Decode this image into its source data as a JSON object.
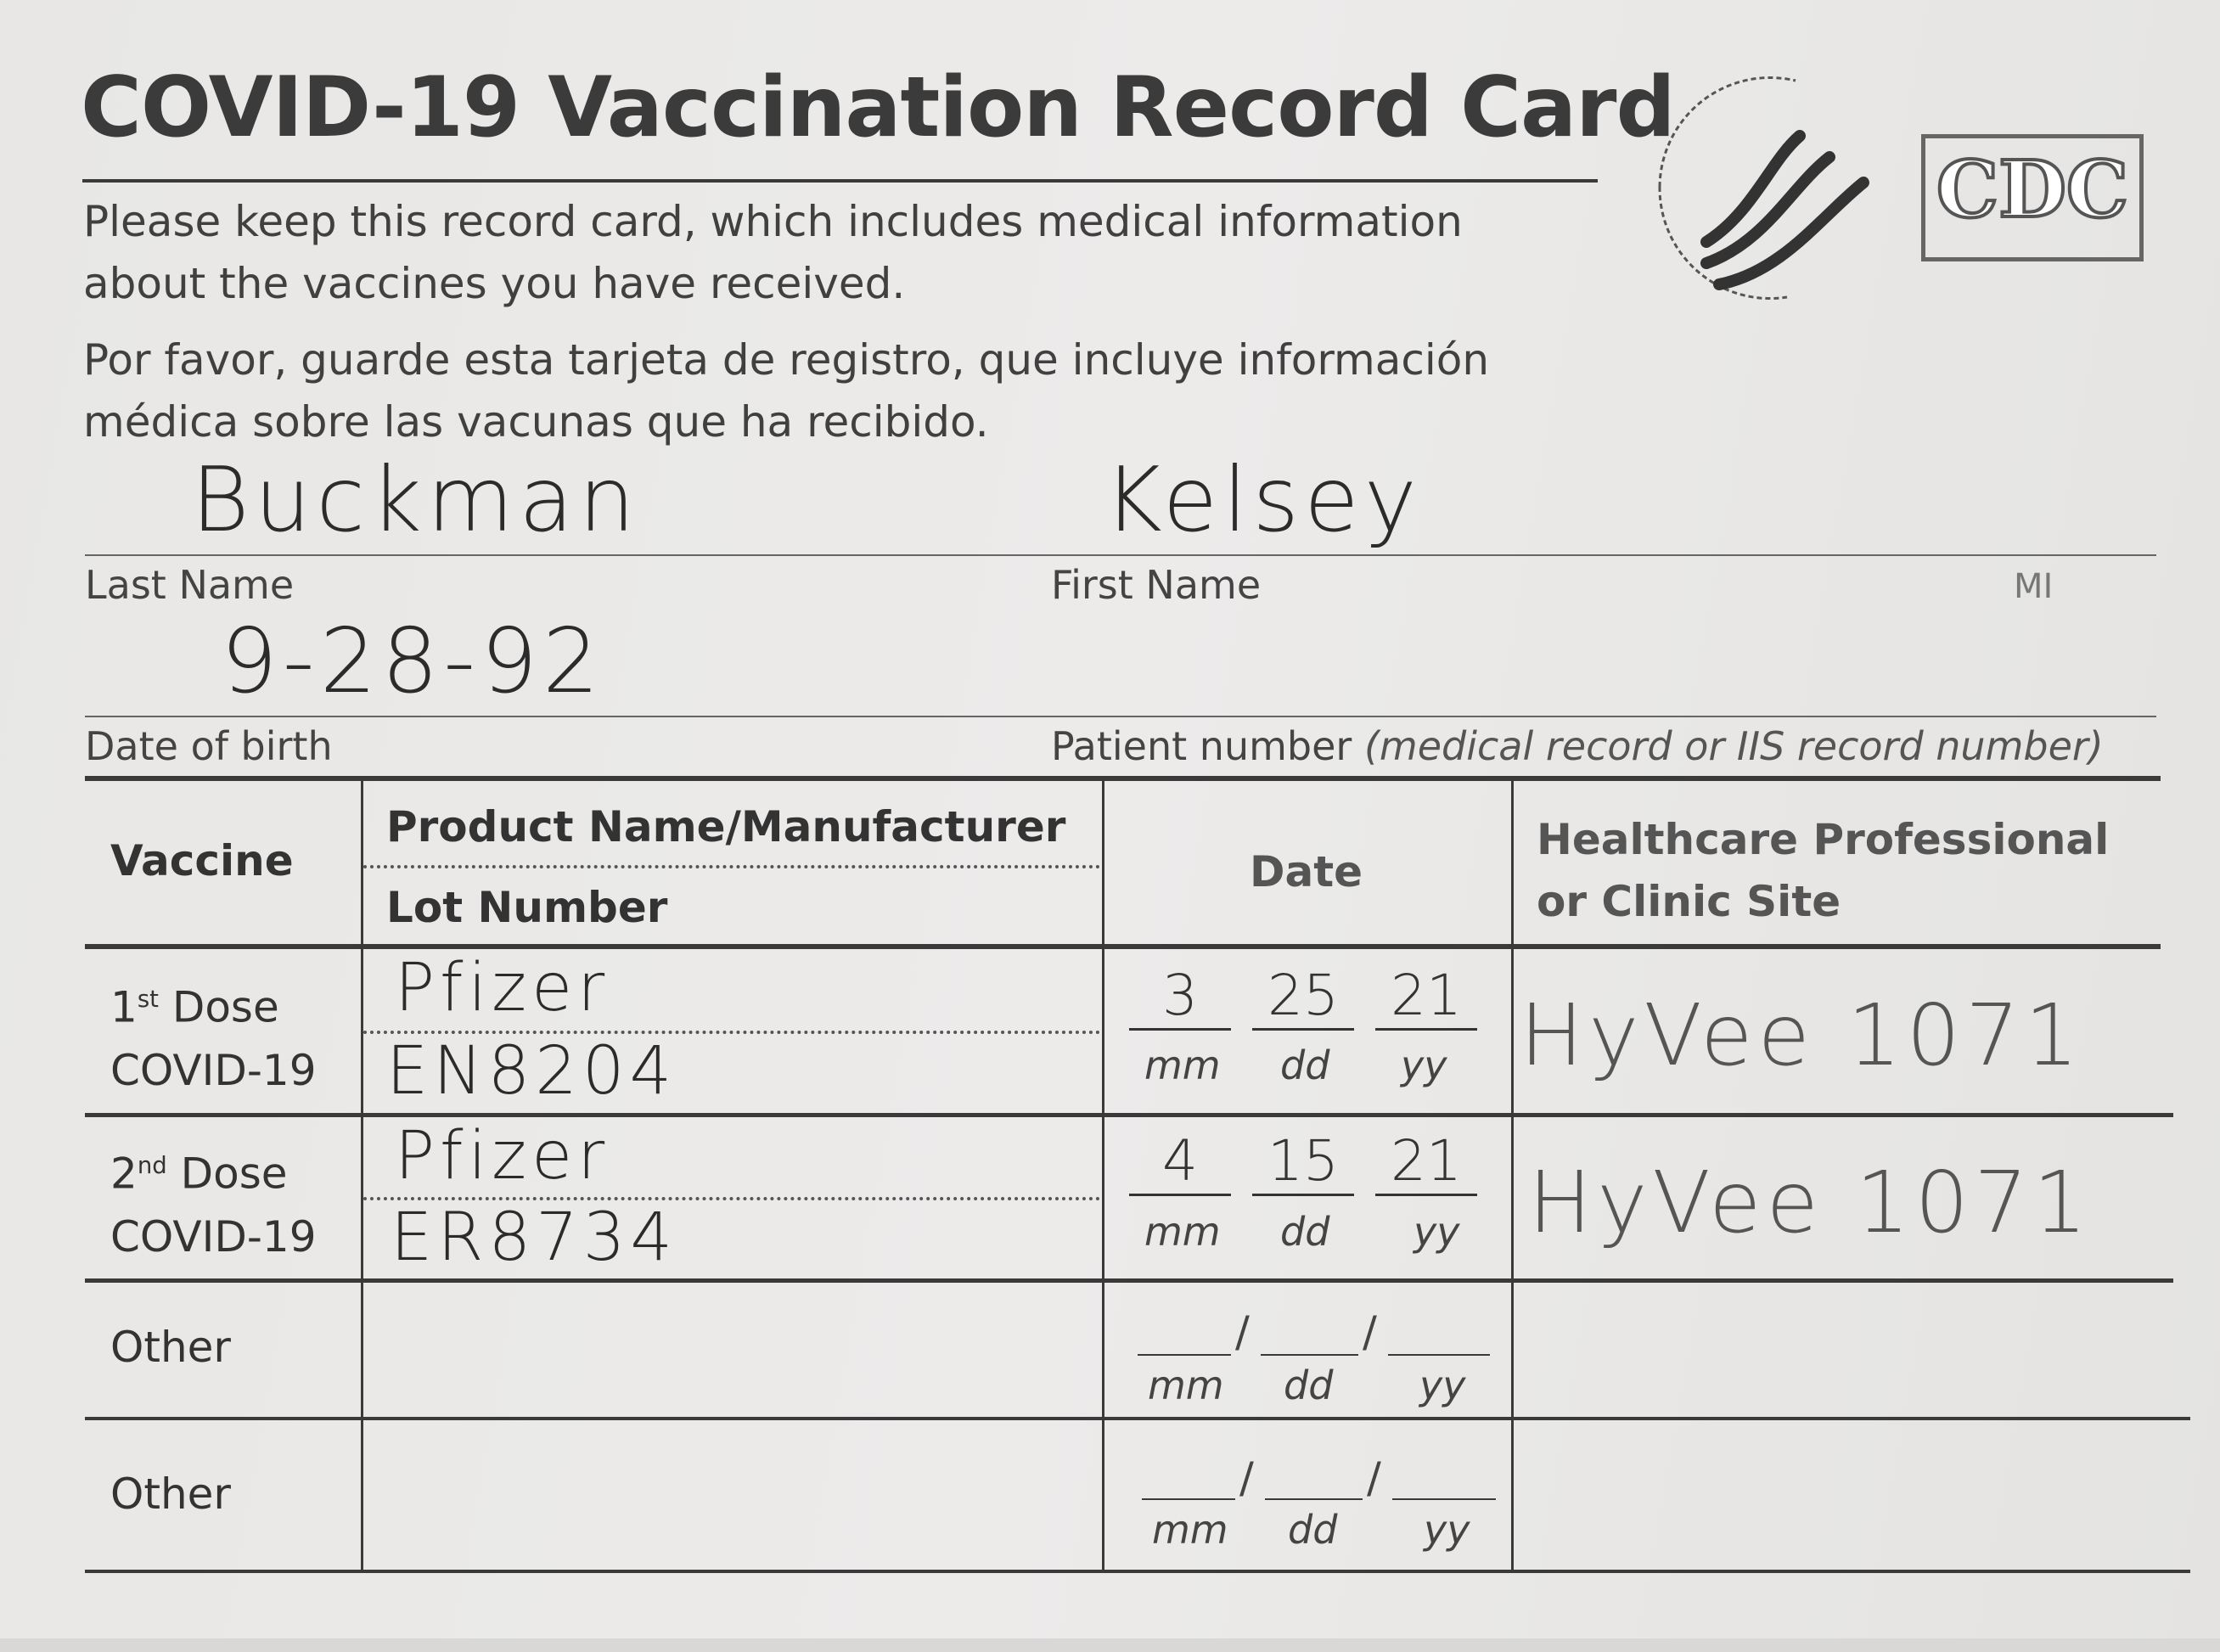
{
  "card": {
    "title": "COVID-19 Vaccination Record Card",
    "intro_en_1": "Please keep this record card, which includes medical information",
    "intro_en_2": "about the vaccines you have received.",
    "intro_es_1": "Por favor, guarde esta tarjeta de registro, que incluye información",
    "intro_es_2": "médica sobre las vacunas que ha recibido.",
    "logo_cdc": "CDC",
    "logo_hhs_icon": "hhs-eagle-seal-icon"
  },
  "patient": {
    "last_name_label": "Last Name",
    "first_name_label": "First Name",
    "mi_label": "MI",
    "dob_label": "Date of birth",
    "patient_number_label": "Patient number",
    "patient_number_hint": "(medical record or IIS record number)",
    "last_name": "Buckman",
    "first_name": "Kelsey",
    "dob": "9-28-92"
  },
  "table": {
    "headers": {
      "vaccine": "Vaccine",
      "product": "Product Name/Manufacturer",
      "lot": "Lot Number",
      "date": "Date",
      "site_1": "Healthcare Professional",
      "site_2": "or Clinic Site"
    },
    "date_fields": {
      "mm": "mm",
      "dd": "dd",
      "yy": "yy"
    },
    "rows": [
      {
        "dose": "1",
        "dose_sup": "st",
        "dose_word": " Dose",
        "vaccine": "COVID-19",
        "product": "Pfizer",
        "lot": "EN8204",
        "mm": "3",
        "dd": "25",
        "yy": "21",
        "site": "HyVee 1071"
      },
      {
        "dose": "2",
        "dose_sup": "nd",
        "dose_word": " Dose",
        "vaccine": "COVID-19",
        "product": "Pfizer",
        "lot": "ER8734",
        "mm": "4",
        "dd": "15",
        "yy": "21",
        "site": "HyVee 1071"
      },
      {
        "label": "Other"
      },
      {
        "label": "Other"
      }
    ]
  }
}
